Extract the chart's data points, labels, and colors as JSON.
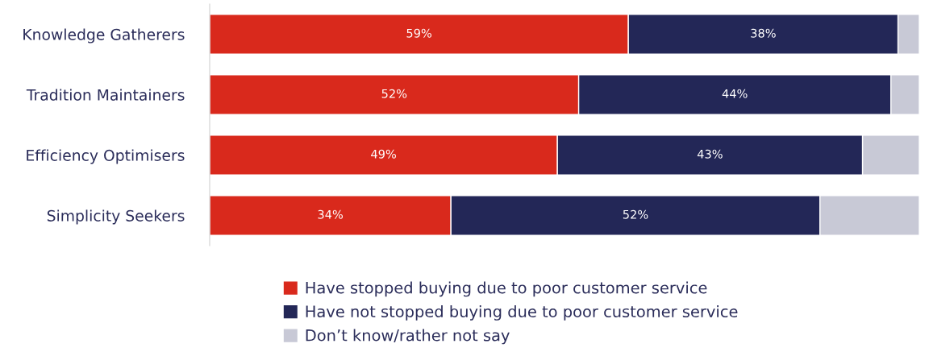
{
  "chart_data": {
    "type": "bar",
    "orientation": "horizontal",
    "stacked": true,
    "categories": [
      "Knowledge Gatherers",
      "Tradition Maintainers",
      "Efficiency Optimisers",
      "Simplicity Seekers"
    ],
    "series": [
      {
        "name": "Have stopped buying due to poor customer service",
        "color": "#d9291c",
        "values": [
          59,
          52,
          49,
          34
        ],
        "value_labels": [
          "59%",
          "52%",
          "49%",
          "34%"
        ]
      },
      {
        "name": "Have not stopped buying due to poor customer service",
        "color": "#232757",
        "values": [
          38,
          44,
          43,
          52
        ],
        "value_labels": [
          "38%",
          "44%",
          "43%",
          "52%"
        ]
      },
      {
        "name": "Don’t know/rather not say",
        "color": "#c8c9d6",
        "values": [
          3,
          4,
          8,
          14
        ]
      }
    ],
    "xlim": [
      0,
      100
    ],
    "legend": "bottom"
  }
}
